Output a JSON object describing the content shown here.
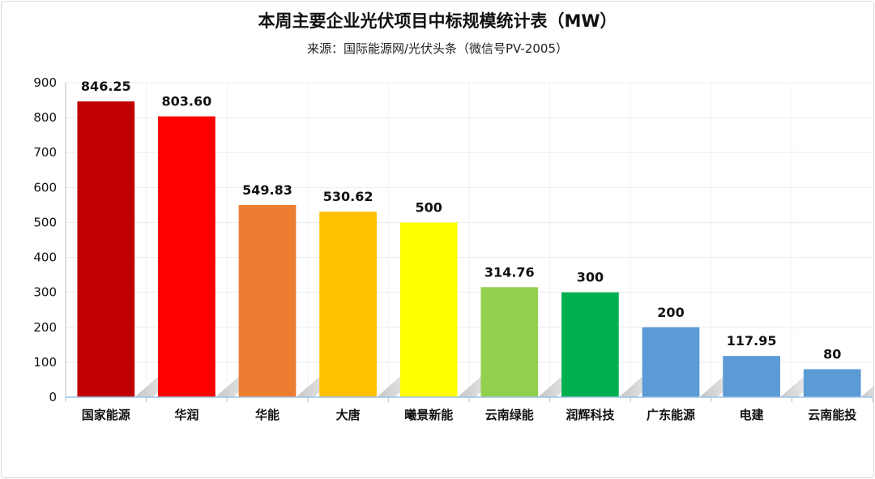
{
  "chart_data": {
    "type": "bar",
    "title": "本周主要企业光伏项目中标规模统计表（MW）",
    "subtitle": "来源：国际能源网/光伏头条（微信号PV-2005）",
    "xlabel": "",
    "ylabel": "",
    "categories": [
      "国家能源",
      "华润",
      "华能",
      "大唐",
      "曦景新能",
      "云南绿能",
      "润辉科技",
      "广东能源",
      "电建",
      "云南能投"
    ],
    "values": [
      846.25,
      803.6,
      549.83,
      530.62,
      500,
      314.76,
      300,
      200,
      117.95,
      80
    ],
    "data_labels": [
      "846.25",
      "803.60",
      "549.83",
      "530.62",
      "500",
      "314.76",
      "300",
      "200",
      "117.95",
      "80"
    ],
    "bar_colors": [
      "#c00000",
      "#ff0000",
      "#ed7d31",
      "#ffc000",
      "#ffff00",
      "#92d050",
      "#00b050",
      "#5b9bd5",
      "#5b9bd5",
      "#5b9bd5"
    ],
    "ylim": [
      0,
      900
    ],
    "yticks": [
      0,
      100,
      200,
      300,
      400,
      500,
      600,
      700,
      800,
      900
    ],
    "grid": true,
    "legend": "none"
  }
}
